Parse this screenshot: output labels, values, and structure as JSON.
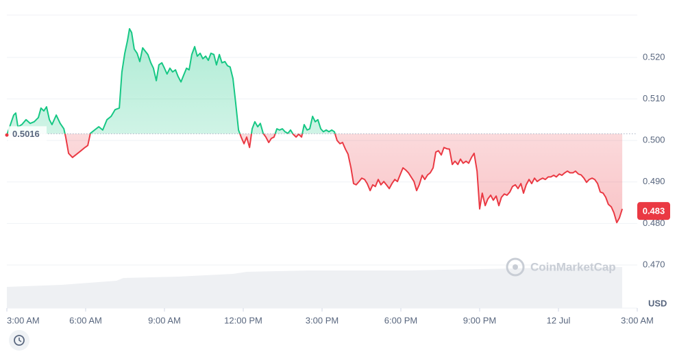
{
  "chart_data": {
    "type": "line",
    "currency": "USD",
    "watermark": "CoinMarketCap",
    "xlim": [
      0,
      24
    ],
    "xticks": [
      {
        "value": 0,
        "label": "3:00 AM"
      },
      {
        "value": 3,
        "label": "6:00 AM"
      },
      {
        "value": 6,
        "label": "9:00 AM"
      },
      {
        "value": 9,
        "label": "12:00 PM"
      },
      {
        "value": 12,
        "label": "3:00 PM"
      },
      {
        "value": 15,
        "label": "6:00 PM"
      },
      {
        "value": 18,
        "label": "9:00 PM"
      },
      {
        "value": 21,
        "label": "12 Jul"
      },
      {
        "value": 24,
        "label": "3:00 AM"
      }
    ],
    "ylim": [
      0.4596,
      0.5302
    ],
    "yticks": [
      {
        "value": 0.47,
        "label": "0.470"
      },
      {
        "value": 0.48,
        "label": "0.480"
      },
      {
        "value": 0.49,
        "label": "0.490"
      },
      {
        "value": 0.5,
        "label": "0.500"
      },
      {
        "value": 0.51,
        "label": "0.510"
      },
      {
        "value": 0.52,
        "label": "0.520"
      }
    ],
    "grid": true,
    "reference_value": 0.5016,
    "last_price": 0.483,
    "up_color": "#16c784",
    "down_color": "#ea3943",
    "last_price_color": "#ea3943",
    "x": [
      0.0,
      0.26,
      0.34,
      0.42,
      0.57,
      0.73,
      0.89,
      1.04,
      1.2,
      1.3,
      1.41,
      1.51,
      1.62,
      1.72,
      1.88,
      2.03,
      2.17,
      2.24,
      2.35,
      2.5,
      2.66,
      2.82,
      2.97,
      3.08,
      3.18,
      3.34,
      3.5,
      3.65,
      3.81,
      3.97,
      4.12,
      4.28,
      4.38,
      4.49,
      4.59,
      4.67,
      4.75,
      4.85,
      4.96,
      5.06,
      5.17,
      5.27,
      5.37,
      5.48,
      5.58,
      5.69,
      5.79,
      5.9,
      6.0,
      6.1,
      6.21,
      6.31,
      6.42,
      6.52,
      6.63,
      6.73,
      6.84,
      6.94,
      7.04,
      7.15,
      7.25,
      7.36,
      7.46,
      7.57,
      7.67,
      7.77,
      7.88,
      7.98,
      8.09,
      8.19,
      8.3,
      8.4,
      8.5,
      8.61,
      8.71,
      8.82,
      8.92,
      9.03,
      9.13,
      9.24,
      9.34,
      9.44,
      9.55,
      9.65,
      9.76,
      9.86,
      9.97,
      10.07,
      10.17,
      10.28,
      10.38,
      10.49,
      10.59,
      10.7,
      10.8,
      10.9,
      11.01,
      11.11,
      11.22,
      11.32,
      11.43,
      11.53,
      11.64,
      11.74,
      11.84,
      11.95,
      12.05,
      12.16,
      12.26,
      12.37,
      12.47,
      12.57,
      12.68,
      12.78,
      12.89,
      12.99,
      13.1,
      13.2,
      13.3,
      13.41,
      13.51,
      13.62,
      13.72,
      13.83,
      13.93,
      14.03,
      14.14,
      14.24,
      14.35,
      14.45,
      14.56,
      14.66,
      14.77,
      14.87,
      14.97,
      15.08,
      15.18,
      15.29,
      15.39,
      15.5,
      15.6,
      15.7,
      15.81,
      15.91,
      16.02,
      16.12,
      16.23,
      16.33,
      16.43,
      16.54,
      16.64,
      16.75,
      16.85,
      16.96,
      17.06,
      17.17,
      17.27,
      17.37,
      17.48,
      17.58,
      17.69,
      17.79,
      17.9,
      18.0,
      18.1,
      18.21,
      18.31,
      18.42,
      18.52,
      18.63,
      18.73,
      18.83,
      18.94,
      19.04,
      19.15,
      19.25,
      19.36,
      19.46,
      19.57,
      19.67,
      19.77,
      19.88,
      19.98,
      20.09,
      20.19,
      20.3,
      20.4,
      20.5,
      20.61,
      20.71,
      20.82,
      20.92,
      21.03,
      21.13,
      21.24,
      21.34,
      21.44,
      21.55,
      21.65,
      21.76,
      21.86,
      21.97,
      22.07,
      22.17,
      22.28,
      22.38,
      22.49,
      22.59,
      22.7,
      22.8,
      22.9,
      23.01,
      23.11,
      23.22,
      23.32,
      23.43
    ],
    "values": [
      0.5013,
      0.5061,
      0.5066,
      0.5033,
      0.5038,
      0.505,
      0.5041,
      0.5045,
      0.5055,
      0.5078,
      0.5071,
      0.5081,
      0.505,
      0.5038,
      0.5061,
      0.5041,
      0.5028,
      0.5008,
      0.4969,
      0.4959,
      0.4967,
      0.4975,
      0.4983,
      0.4988,
      0.5017,
      0.5025,
      0.5033,
      0.5025,
      0.505,
      0.5058,
      0.5074,
      0.5078,
      0.5165,
      0.521,
      0.524,
      0.5269,
      0.526,
      0.522,
      0.521,
      0.519,
      0.5223,
      0.5215,
      0.5207,
      0.5187,
      0.5174,
      0.5144,
      0.5182,
      0.5187,
      0.5174,
      0.516,
      0.5174,
      0.5165,
      0.517,
      0.5154,
      0.5141,
      0.5157,
      0.5174,
      0.517,
      0.5207,
      0.5226,
      0.5203,
      0.521,
      0.5197,
      0.5203,
      0.5193,
      0.521,
      0.5207,
      0.5182,
      0.5207,
      0.5187,
      0.519,
      0.518,
      0.5177,
      0.5149,
      0.5091,
      0.5025,
      0.5008,
      0.4992,
      0.5008,
      0.4983,
      0.5028,
      0.5045,
      0.5033,
      0.5041,
      0.5017,
      0.5008,
      0.4995,
      0.5005,
      0.5008,
      0.5028,
      0.5025,
      0.5028,
      0.5021,
      0.5017,
      0.5025,
      0.5015,
      0.5008,
      0.5015,
      0.5008,
      0.5038,
      0.5025,
      0.5028,
      0.5058,
      0.5045,
      0.505,
      0.5028,
      0.5021,
      0.5025,
      0.5021,
      0.5025,
      0.5021,
      0.5,
      0.4992,
      0.4995,
      0.4979,
      0.4967,
      0.4934,
      0.4896,
      0.4893,
      0.4901,
      0.4909,
      0.4906,
      0.4896,
      0.4879,
      0.4893,
      0.4889,
      0.4906,
      0.4893,
      0.4901,
      0.4893,
      0.4884,
      0.4896,
      0.4906,
      0.4901,
      0.4917,
      0.4934,
      0.4929,
      0.4922,
      0.4912,
      0.4901,
      0.4879,
      0.4893,
      0.4916,
      0.4906,
      0.4917,
      0.4922,
      0.4934,
      0.4972,
      0.4975,
      0.4965,
      0.4983,
      0.498,
      0.4979,
      0.4942,
      0.495,
      0.4942,
      0.4955,
      0.4945,
      0.495,
      0.4945,
      0.4959,
      0.4969,
      0.4926,
      0.4835,
      0.4873,
      0.4843,
      0.4859,
      0.4868,
      0.4856,
      0.4866,
      0.4843,
      0.4863,
      0.4871,
      0.4868,
      0.4876,
      0.4889,
      0.4893,
      0.4884,
      0.4896,
      0.4873,
      0.4893,
      0.4906,
      0.4896,
      0.4909,
      0.4901,
      0.4906,
      0.4909,
      0.4906,
      0.4912,
      0.4912,
      0.4916,
      0.4912,
      0.4919,
      0.4916,
      0.4922,
      0.4926,
      0.4922,
      0.4922,
      0.4926,
      0.4919,
      0.4917,
      0.4909,
      0.4899,
      0.4906,
      0.4909,
      0.4906,
      0.4896,
      0.4876,
      0.4873,
      0.4863,
      0.4846,
      0.484,
      0.4826,
      0.4802,
      0.4813,
      0.4835
    ]
  }
}
